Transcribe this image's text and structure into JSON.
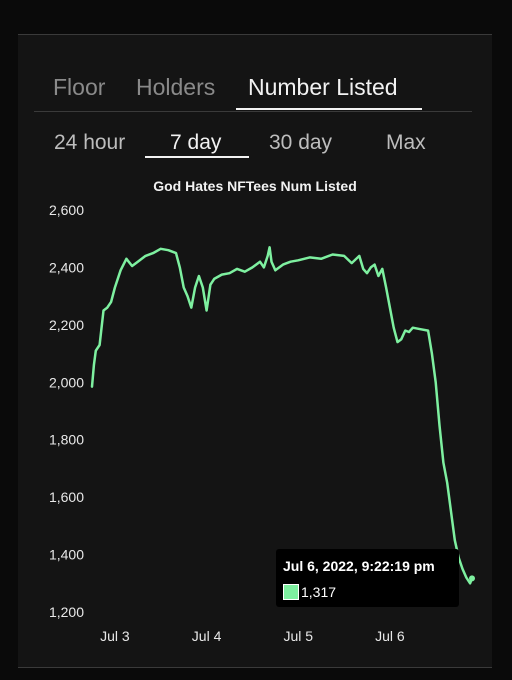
{
  "metric_tabs": [
    {
      "label": "Floor",
      "active": false
    },
    {
      "label": "Holders",
      "active": false
    },
    {
      "label": "Number Listed",
      "active": true
    }
  ],
  "range_tabs": [
    {
      "label": "24 hour",
      "active": false
    },
    {
      "label": "7 day",
      "active": true
    },
    {
      "label": "30 day",
      "active": false
    },
    {
      "label": "Max",
      "active": false
    }
  ],
  "colors": {
    "line": "#7ef0a0",
    "background": "#141414",
    "grid": "#3a3a3a"
  },
  "chart_data": {
    "type": "line",
    "title": "God Hates NFTees Num Listed",
    "xlabel": "",
    "ylabel": "",
    "ylim": [
      1200,
      2600
    ],
    "y_ticks": [
      1200,
      1400,
      1600,
      1800,
      2000,
      2200,
      2400,
      2600
    ],
    "y_tick_labels": [
      "1,200",
      "1,400",
      "1,600",
      "1,800",
      "2,000",
      "2,200",
      "2,400",
      "2,600"
    ],
    "x_range": [
      "2022-07-02 18:00",
      "2022-07-06 21:30"
    ],
    "x_ticks": [
      "2022-07-03 00:00",
      "2022-07-04 00:00",
      "2022-07-05 00:00",
      "2022-07-06 00:00"
    ],
    "x_tick_labels": [
      "Jul 3",
      "Jul 4",
      "Jul 5",
      "Jul 6"
    ],
    "grid": false,
    "legend": "none",
    "series": [
      {
        "values": [
          [
            "2022-07-02 18:00",
            1985
          ],
          [
            "2022-07-02 18:30",
            2060
          ],
          [
            "2022-07-02 19:00",
            2110
          ],
          [
            "2022-07-02 20:00",
            2130
          ],
          [
            "2022-07-02 21:00",
            2250
          ],
          [
            "2022-07-02 22:00",
            2260
          ],
          [
            "2022-07-02 23:00",
            2280
          ],
          [
            "2022-07-03 00:00",
            2330
          ],
          [
            "2022-07-03 01:30",
            2390
          ],
          [
            "2022-07-03 03:00",
            2430
          ],
          [
            "2022-07-03 04:30",
            2405
          ],
          [
            "2022-07-03 06:00",
            2420
          ],
          [
            "2022-07-03 08:00",
            2440
          ],
          [
            "2022-07-03 10:00",
            2450
          ],
          [
            "2022-07-03 12:00",
            2465
          ],
          [
            "2022-07-03 14:00",
            2460
          ],
          [
            "2022-07-03 16:00",
            2450
          ],
          [
            "2022-07-03 17:00",
            2400
          ],
          [
            "2022-07-03 18:00",
            2330
          ],
          [
            "2022-07-03 19:00",
            2300
          ],
          [
            "2022-07-03 20:00",
            2260
          ],
          [
            "2022-07-03 21:00",
            2330
          ],
          [
            "2022-07-03 22:00",
            2370
          ],
          [
            "2022-07-03 23:00",
            2330
          ],
          [
            "2022-07-04 00:00",
            2250
          ],
          [
            "2022-07-04 01:00",
            2340
          ],
          [
            "2022-07-04 02:00",
            2360
          ],
          [
            "2022-07-04 04:00",
            2375
          ],
          [
            "2022-07-04 06:00",
            2380
          ],
          [
            "2022-07-04 08:00",
            2395
          ],
          [
            "2022-07-04 10:00",
            2385
          ],
          [
            "2022-07-04 12:00",
            2400
          ],
          [
            "2022-07-04 14:00",
            2420
          ],
          [
            "2022-07-04 15:00",
            2400
          ],
          [
            "2022-07-04 16:00",
            2440
          ],
          [
            "2022-07-04 16:30",
            2470
          ],
          [
            "2022-07-04 17:00",
            2420
          ],
          [
            "2022-07-04 18:00",
            2390
          ],
          [
            "2022-07-04 20:00",
            2410
          ],
          [
            "2022-07-04 22:00",
            2420
          ],
          [
            "2022-07-05 00:00",
            2425
          ],
          [
            "2022-07-05 03:00",
            2435
          ],
          [
            "2022-07-05 06:00",
            2430
          ],
          [
            "2022-07-05 09:00",
            2445
          ],
          [
            "2022-07-05 12:00",
            2440
          ],
          [
            "2022-07-05 14:00",
            2415
          ],
          [
            "2022-07-05 16:00",
            2440
          ],
          [
            "2022-07-05 17:00",
            2395
          ],
          [
            "2022-07-05 18:00",
            2380
          ],
          [
            "2022-07-05 19:00",
            2400
          ],
          [
            "2022-07-05 20:00",
            2410
          ],
          [
            "2022-07-05 21:00",
            2370
          ],
          [
            "2022-07-05 22:00",
            2395
          ],
          [
            "2022-07-05 23:00",
            2330
          ],
          [
            "2022-07-06 00:00",
            2260
          ],
          [
            "2022-07-06 01:00",
            2190
          ],
          [
            "2022-07-06 02:00",
            2140
          ],
          [
            "2022-07-06 03:00",
            2150
          ],
          [
            "2022-07-06 04:00",
            2180
          ],
          [
            "2022-07-06 05:00",
            2175
          ],
          [
            "2022-07-06 06:00",
            2190
          ],
          [
            "2022-07-06 08:00",
            2185
          ],
          [
            "2022-07-06 10:00",
            2180
          ],
          [
            "2022-07-06 11:00",
            2100
          ],
          [
            "2022-07-06 12:00",
            2000
          ],
          [
            "2022-07-06 13:00",
            1850
          ],
          [
            "2022-07-06 14:00",
            1720
          ],
          [
            "2022-07-06 15:00",
            1650
          ],
          [
            "2022-07-06 16:00",
            1550
          ],
          [
            "2022-07-06 17:00",
            1450
          ],
          [
            "2022-07-06 18:00",
            1390
          ],
          [
            "2022-07-06 19:00",
            1350
          ],
          [
            "2022-07-06 20:00",
            1320
          ],
          [
            "2022-07-06 21:00",
            1300
          ],
          [
            "2022-07-06 21:30",
            1317
          ]
        ]
      }
    ]
  },
  "tooltip": {
    "date": "Jul 6, 2022, 9:22:19 pm",
    "value": "1,317"
  }
}
